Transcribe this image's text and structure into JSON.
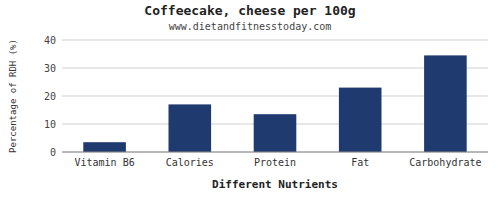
{
  "chart_data": {
    "type": "bar",
    "title": "Coffeecake, cheese per 100g",
    "subtitle": "www.dietandfitnesstoday.com",
    "xlabel": "Different Nutrients",
    "ylabel": "Percentage of RDH (%)",
    "categories": [
      "Vitamin B6",
      "Calories",
      "Protein",
      "Fat",
      "Carbohydrate"
    ],
    "values": [
      3.5,
      17.0,
      13.5,
      23.0,
      34.5
    ],
    "color": "#1f3a6e",
    "ylim": [
      0,
      40
    ],
    "yticks": [
      0,
      10,
      20,
      30,
      40
    ],
    "grid": true
  }
}
